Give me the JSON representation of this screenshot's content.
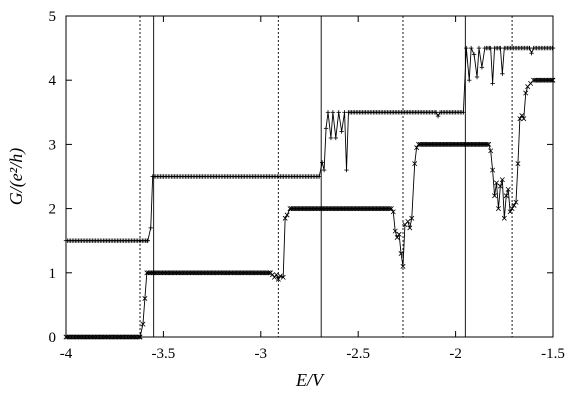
{
  "chart_data": {
    "type": "line",
    "xlabel": "E/V",
    "ylabel": "G/(e²/h)",
    "xlim": [
      -4,
      -1.5
    ],
    "ylim": [
      0,
      5
    ],
    "xticks": [
      -4,
      -3.5,
      -3,
      -2.5,
      -2,
      -1.5
    ],
    "xtick_labels": [
      "-4",
      "-3.5",
      "-3",
      "-2.5",
      "-2",
      "-1.5"
    ],
    "yticks": [
      0,
      1,
      2,
      3,
      4,
      5
    ],
    "ytick_labels": [
      "0",
      "1",
      "2",
      "3",
      "4",
      "5"
    ],
    "grid": false,
    "legend": "none",
    "vlines_solid": [
      -3.55,
      -2.69,
      -1.95
    ],
    "vlines_dotted": [
      -3.62,
      -2.91,
      -2.27,
      -1.71
    ],
    "series": [
      {
        "marker": "+",
        "color": "#000000",
        "points": [
          [
            -4.0,
            1.5
          ],
          [
            -3.58,
            1.5
          ],
          [
            -3.565,
            1.7
          ],
          [
            -3.555,
            2.5
          ],
          [
            -2.7,
            2.5
          ],
          [
            -2.685,
            2.72
          ],
          [
            -2.675,
            2.6
          ],
          [
            -2.665,
            3.25
          ],
          [
            -2.655,
            3.5
          ],
          [
            -2.64,
            3.1
          ],
          [
            -2.63,
            3.5
          ],
          [
            -2.615,
            3.1
          ],
          [
            -2.6,
            3.5
          ],
          [
            -2.585,
            3.2
          ],
          [
            -2.57,
            3.5
          ],
          [
            -2.56,
            2.6
          ],
          [
            -2.55,
            3.5
          ],
          [
            -2.1,
            3.5
          ],
          [
            -2.09,
            3.44
          ],
          [
            -2.08,
            3.5
          ],
          [
            -1.96,
            3.5
          ],
          [
            -1.945,
            4.5
          ],
          [
            -1.93,
            4.0
          ],
          [
            -1.92,
            4.5
          ],
          [
            -1.905,
            4.4
          ],
          [
            -1.89,
            4.05
          ],
          [
            -1.88,
            4.5
          ],
          [
            -1.865,
            4.2
          ],
          [
            -1.85,
            4.5
          ],
          [
            -1.82,
            4.5
          ],
          [
            -1.81,
            3.95
          ],
          [
            -1.8,
            4.5
          ],
          [
            -1.77,
            4.5
          ],
          [
            -1.76,
            4.1
          ],
          [
            -1.75,
            4.5
          ],
          [
            -1.62,
            4.5
          ],
          [
            -1.61,
            4.42
          ],
          [
            -1.6,
            4.5
          ],
          [
            -1.5,
            4.5
          ]
        ]
      },
      {
        "marker": "x",
        "color": "#000000",
        "points": [
          [
            -4.0,
            0.0
          ],
          [
            -3.62,
            0.0
          ],
          [
            -3.605,
            0.2
          ],
          [
            -3.595,
            0.6
          ],
          [
            -3.585,
            1.0
          ],
          [
            -2.95,
            1.0
          ],
          [
            -2.94,
            0.97
          ],
          [
            -2.93,
            0.93
          ],
          [
            -2.92,
            0.97
          ],
          [
            -2.91,
            0.9
          ],
          [
            -2.9,
            0.95
          ],
          [
            -2.885,
            0.93
          ],
          [
            -2.875,
            1.85
          ],
          [
            -2.865,
            1.9
          ],
          [
            -2.85,
            2.0
          ],
          [
            -2.33,
            2.0
          ],
          [
            -2.32,
            1.95
          ],
          [
            -2.31,
            1.65
          ],
          [
            -2.3,
            1.55
          ],
          [
            -2.29,
            1.6
          ],
          [
            -2.28,
            1.3
          ],
          [
            -2.27,
            1.1
          ],
          [
            -2.26,
            1.75
          ],
          [
            -2.245,
            1.8
          ],
          [
            -2.235,
            1.7
          ],
          [
            -2.225,
            1.85
          ],
          [
            -2.21,
            2.7
          ],
          [
            -2.2,
            2.95
          ],
          [
            -2.19,
            3.0
          ],
          [
            -1.83,
            3.0
          ],
          [
            -1.82,
            2.9
          ],
          [
            -1.81,
            2.6
          ],
          [
            -1.8,
            2.2
          ],
          [
            -1.79,
            2.4
          ],
          [
            -1.78,
            2.0
          ],
          [
            -1.77,
            2.35
          ],
          [
            -1.76,
            2.45
          ],
          [
            -1.75,
            1.85
          ],
          [
            -1.74,
            2.2
          ],
          [
            -1.73,
            2.3
          ],
          [
            -1.72,
            1.95
          ],
          [
            -1.71,
            2.0
          ],
          [
            -1.7,
            2.05
          ],
          [
            -1.69,
            2.1
          ],
          [
            -1.68,
            2.7
          ],
          [
            -1.67,
            3.4
          ],
          [
            -1.66,
            3.45
          ],
          [
            -1.65,
            3.4
          ],
          [
            -1.64,
            3.8
          ],
          [
            -1.63,
            3.9
          ],
          [
            -1.615,
            3.95
          ],
          [
            -1.6,
            4.0
          ],
          [
            -1.5,
            4.0
          ]
        ]
      }
    ]
  }
}
